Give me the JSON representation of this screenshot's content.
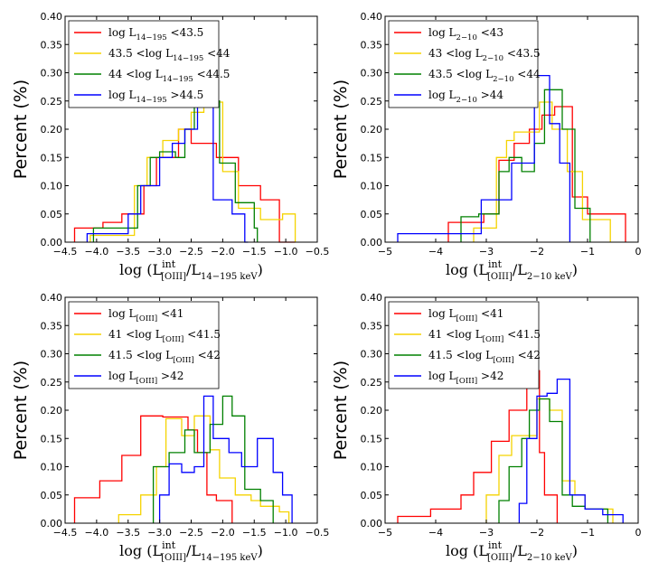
{
  "chart_data": [
    {
      "type": "histogram",
      "ylabel": "Percent (%)",
      "xlabel_main": "log (L",
      "xlabel_sup": "int",
      "xlabel_sub1": "[OIII]",
      "xlabel_mid": "/L",
      "xlabel_sub2": "14−195 keV",
      "xlabel_end": ")",
      "xlim": [
        -4.5,
        -0.5
      ],
      "ylim": [
        0,
        0.4
      ],
      "xticks": [
        -4.5,
        -4.0,
        -3.5,
        -3.0,
        -2.5,
        -2.0,
        -1.5,
        -1.0,
        -0.5
      ],
      "xtick_labels": [
        "−4.5",
        "−4.0",
        "−3.5",
        "−3.0",
        "−2.5",
        "−2.0",
        "−1.5",
        "−1.0",
        "−0.5"
      ],
      "yticks": [
        0,
        0.05,
        0.1,
        0.15,
        0.2,
        0.25,
        0.3,
        0.35,
        0.4
      ],
      "ytick_labels": [
        "0.00",
        "0.05",
        "0.10",
        "0.15",
        "0.20",
        "0.25",
        "0.30",
        "0.35",
        "0.40"
      ],
      "legend_position": "top-left",
      "series": [
        {
          "legend": [
            "log L",
            "14−195",
            " <43.5"
          ],
          "color": "#ff0000",
          "edges": [
            -4.35,
            -3.9,
            -3.6,
            -3.25,
            -3.05,
            -2.7,
            -2.5,
            -2.1,
            -1.75,
            -1.4,
            -1.1,
            -0.85
          ],
          "values": [
            0.025,
            0.035,
            0.05,
            0.1,
            0.15,
            0.2,
            0.175,
            0.15,
            0.1,
            0.075,
            0.0
          ]
        },
        {
          "legend": [
            "43.5 <log L",
            "14−195",
            " <44"
          ],
          "color": "#f5d300",
          "edges": [
            -4.1,
            -3.4,
            -3.2,
            -2.95,
            -2.7,
            -2.5,
            -2.3,
            -2.0,
            -1.75,
            -1.4,
            -1.05,
            -0.85
          ],
          "values": [
            0.012,
            0.1,
            0.15,
            0.18,
            0.2,
            0.23,
            0.248,
            0.125,
            0.06,
            0.04,
            0.05
          ]
        },
        {
          "legend": [
            "44 <log L",
            "14−195",
            " <44.5"
          ],
          "color": "#008000",
          "edges": [
            -4.05,
            -3.7,
            -3.35,
            -3.15,
            -3.0,
            -2.75,
            -2.6,
            -2.45,
            -2.25,
            -2.05,
            -1.8,
            -1.5,
            -1.45
          ],
          "values": [
            0.025,
            0.025,
            0.1,
            0.15,
            0.16,
            0.15,
            0.2,
            0.256,
            0.25,
            0.14,
            0.07,
            0.025
          ]
        },
        {
          "legend": [
            "log L",
            "14−195",
            " >44.5"
          ],
          "color": "#0000ff",
          "edges": [
            -4.15,
            -3.5,
            -3.3,
            -3.0,
            -2.8,
            -2.6,
            -2.4,
            -2.25,
            -2.15,
            -1.85,
            -1.65,
            -1.6
          ],
          "values": [
            0.015,
            0.05,
            0.1,
            0.15,
            0.175,
            0.2,
            0.25,
            0.253,
            0.075,
            0.05,
            0.0
          ]
        }
      ]
    },
    {
      "type": "histogram",
      "ylabel": "Percent (%)",
      "xlabel_main": "log (L",
      "xlabel_sup": "int",
      "xlabel_sub1": "[OIII]",
      "xlabel_mid": "/L",
      "xlabel_sub2": "2−10 keV",
      "xlabel_end": ")",
      "xlim": [
        -5,
        0
      ],
      "ylim": [
        0,
        0.4
      ],
      "xticks": [
        -5,
        -4,
        -3,
        -2,
        -1,
        0
      ],
      "xtick_labels": [
        "−5",
        "−4",
        "−3",
        "−2",
        "−1",
        "0"
      ],
      "yticks": [
        0,
        0.05,
        0.1,
        0.15,
        0.2,
        0.25,
        0.3,
        0.35,
        0.4
      ],
      "ytick_labels": [
        "0.00",
        "0.05",
        "0.10",
        "0.15",
        "0.20",
        "0.25",
        "0.30",
        "0.35",
        "0.40"
      ],
      "legend_position": "top-left",
      "series": [
        {
          "legend": [
            "log L",
            "2−10",
            " <43"
          ],
          "color": "#ff0000",
          "edges": [
            -3.75,
            -3.05,
            -2.75,
            -2.45,
            -2.15,
            -1.9,
            -1.65,
            -1.3,
            -1.0,
            -0.25
          ],
          "values": [
            0.035,
            0.05,
            0.145,
            0.175,
            0.2,
            0.225,
            0.24,
            0.08,
            0.05
          ]
        },
        {
          "legend": [
            "43 <log L",
            "2−10",
            " <43.5"
          ],
          "color": "#f5d300",
          "edges": [
            -3.25,
            -2.8,
            -2.6,
            -2.45,
            -2.2,
            -1.95,
            -1.7,
            -1.4,
            -1.1,
            -0.55
          ],
          "values": [
            0.025,
            0.15,
            0.18,
            0.195,
            0.195,
            0.248,
            0.2,
            0.125,
            0.04
          ]
        },
        {
          "legend": [
            "43.5 <log L",
            "2−10",
            " <44"
          ],
          "color": "#008000",
          "edges": [
            -3.5,
            -3.15,
            -2.75,
            -2.55,
            -2.3,
            -2.05,
            -1.85,
            -1.5,
            -1.25,
            -0.95
          ],
          "values": [
            0.045,
            0.05,
            0.125,
            0.15,
            0.125,
            0.175,
            0.27,
            0.2,
            0.06
          ]
        },
        {
          "legend": [
            "log L",
            "2−10",
            " >44"
          ],
          "color": "#0000ff",
          "edges": [
            -4.75,
            -3.1,
            -2.5,
            -2.05,
            -1.75,
            -1.55,
            -1.35
          ],
          "values": [
            0.015,
            0.075,
            0.14,
            0.295,
            0.21,
            0.14
          ]
        }
      ]
    },
    {
      "type": "histogram",
      "ylabel": "Percent (%)",
      "xlabel_main": "log (L",
      "xlabel_sup": "int",
      "xlabel_sub1": "[OIII]",
      "xlabel_mid": "/L",
      "xlabel_sub2": "14−195 keV",
      "xlabel_end": ")",
      "xlim": [
        -4.5,
        -0.5
      ],
      "ylim": [
        0,
        0.4
      ],
      "xticks": [
        -4.5,
        -4.0,
        -3.5,
        -3.0,
        -2.5,
        -2.0,
        -1.5,
        -1.0,
        -0.5
      ],
      "xtick_labels": [
        "−4.5",
        "−4.0",
        "−3.5",
        "−3.0",
        "−2.5",
        "−2.0",
        "−1.5",
        "−1.0",
        "−0.5"
      ],
      "yticks": [
        0,
        0.05,
        0.1,
        0.15,
        0.2,
        0.25,
        0.3,
        0.35,
        0.4
      ],
      "ytick_labels": [
        "0.00",
        "0.05",
        "0.10",
        "0.15",
        "0.20",
        "0.25",
        "0.30",
        "0.35",
        "0.40"
      ],
      "legend_position": "top-left",
      "series": [
        {
          "legend": [
            "log L",
            "[OIII]",
            " <41"
          ],
          "color": "#ff0000",
          "edges": [
            -4.35,
            -3.95,
            -3.6,
            -3.3,
            -2.95,
            -2.55,
            -2.4,
            -2.25,
            -2.1,
            -1.85
          ],
          "values": [
            0.045,
            0.075,
            0.12,
            0.19,
            0.188,
            0.165,
            0.125,
            0.05,
            0.04
          ]
        },
        {
          "legend": [
            "41 <log L",
            "[OIII]",
            " <41.5"
          ],
          "color": "#f5d300",
          "edges": [
            -3.65,
            -3.3,
            -3.05,
            -2.9,
            -2.65,
            -2.45,
            -2.2,
            -2.05,
            -1.8,
            -1.55,
            -1.4,
            -1.1,
            -0.95
          ],
          "values": [
            0.015,
            0.05,
            0.1,
            0.185,
            0.155,
            0.19,
            0.13,
            0.08,
            0.05,
            0.04,
            0.03,
            0.02
          ]
        },
        {
          "legend": [
            "41.5 <log L",
            "[OIII]",
            " <42"
          ],
          "color": "#008000",
          "edges": [
            -3.1,
            -2.85,
            -2.6,
            -2.45,
            -2.2,
            -2.0,
            -1.85,
            -1.65,
            -1.4,
            -1.2
          ],
          "values": [
            0.1,
            0.125,
            0.165,
            0.125,
            0.175,
            0.225,
            0.19,
            0.06,
            0.04
          ]
        },
        {
          "legend": [
            "log L",
            "[OIII]",
            " >42"
          ],
          "color": "#0000ff",
          "edges": [
            -3.0,
            -2.85,
            -2.65,
            -2.45,
            -2.3,
            -2.15,
            -1.9,
            -1.7,
            -1.45,
            -1.2,
            -1.05,
            -0.9
          ],
          "values": [
            0.05,
            0.105,
            0.09,
            0.1,
            0.225,
            0.15,
            0.125,
            0.1,
            0.15,
            0.09,
            0.05
          ]
        }
      ]
    },
    {
      "type": "histogram",
      "ylabel": "Percent (%)",
      "xlabel_main": "log (L",
      "xlabel_sup": "int",
      "xlabel_sub1": "[OIII]",
      "xlabel_mid": "/L",
      "xlabel_sub2": "2−10 keV",
      "xlabel_end": ")",
      "xlim": [
        -5,
        0
      ],
      "ylim": [
        0,
        0.4
      ],
      "xticks": [
        -5,
        -4,
        -3,
        -2,
        -1,
        0
      ],
      "xtick_labels": [
        "−5",
        "−4",
        "−3",
        "−2",
        "−1",
        "0"
      ],
      "yticks": [
        0,
        0.05,
        0.1,
        0.15,
        0.2,
        0.25,
        0.3,
        0.35,
        0.4
      ],
      "ytick_labels": [
        "0.00",
        "0.05",
        "0.10",
        "0.15",
        "0.20",
        "0.25",
        "0.30",
        "0.35",
        "0.40"
      ],
      "legend_position": "top-left",
      "series": [
        {
          "legend": [
            "log L",
            "[OIII]",
            " <41"
          ],
          "color": "#ff0000",
          "edges": [
            -4.75,
            -4.1,
            -3.5,
            -3.25,
            -2.9,
            -2.55,
            -2.2,
            -1.95,
            -1.85,
            -1.6
          ],
          "values": [
            0.012,
            0.025,
            0.05,
            0.09,
            0.145,
            0.2,
            0.27,
            0.125,
            0.05
          ]
        },
        {
          "legend": [
            "41 <log L",
            "[OIII]",
            " <41.5"
          ],
          "color": "#f5d300",
          "edges": [
            -3.0,
            -2.75,
            -2.5,
            -2.3,
            -2.0,
            -1.75,
            -1.5,
            -1.25,
            -1.05,
            -0.5
          ],
          "values": [
            0.05,
            0.12,
            0.155,
            0.155,
            0.22,
            0.2,
            0.075,
            0.05,
            0.025
          ]
        },
        {
          "legend": [
            "41.5 <log L",
            "[OIII]",
            " <42"
          ],
          "color": "#008000",
          "edges": [
            -2.75,
            -2.55,
            -2.3,
            -2.15,
            -1.95,
            -1.75,
            -1.5,
            -1.3,
            -1.05,
            -0.6
          ],
          "values": [
            0.04,
            0.1,
            0.15,
            0.2,
            0.22,
            0.18,
            0.05,
            0.03,
            0.025
          ]
        },
        {
          "legend": [
            "log L",
            "[OIII]",
            " >42"
          ],
          "color": "#0000ff",
          "edges": [
            -2.35,
            -2.2,
            -2.0,
            -1.8,
            -1.6,
            -1.35,
            -1.05,
            -0.7,
            -0.3
          ],
          "values": [
            0.035,
            0.15,
            0.225,
            0.23,
            0.255,
            0.05,
            0.025,
            0.015
          ]
        }
      ]
    }
  ]
}
